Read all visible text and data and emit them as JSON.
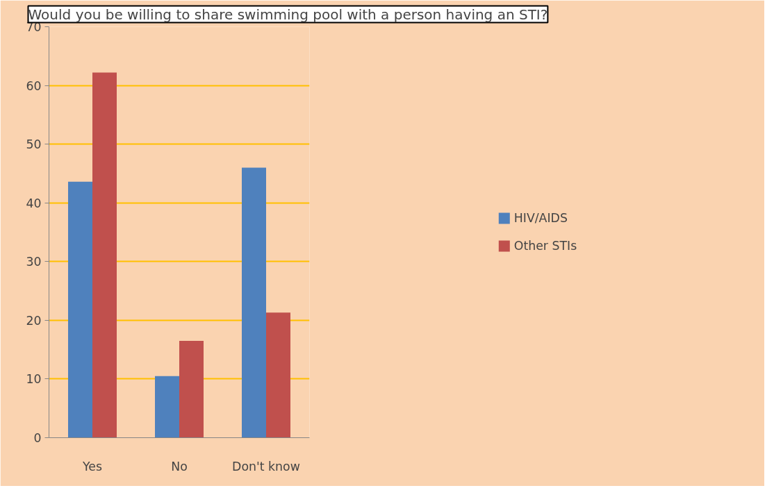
{
  "chart_data": {
    "type": "bar",
    "title": "Would you be willing to share swimming pool with a person having an STI?",
    "categories": [
      "Yes",
      "No",
      "Don't know"
    ],
    "series": [
      {
        "name": "HIV/AIDS",
        "color": "#4f81bd",
        "values": [
          43.6,
          10.5,
          46.0
        ]
      },
      {
        "name": "Other STIs",
        "color": "#c0504d",
        "values": [
          62.2,
          16.5,
          21.3
        ]
      }
    ],
    "ylim": [
      0,
      70
    ],
    "yticks": [
      0,
      10,
      20,
      30,
      40,
      50,
      60,
      70
    ],
    "grid": "y",
    "legend": "right"
  }
}
